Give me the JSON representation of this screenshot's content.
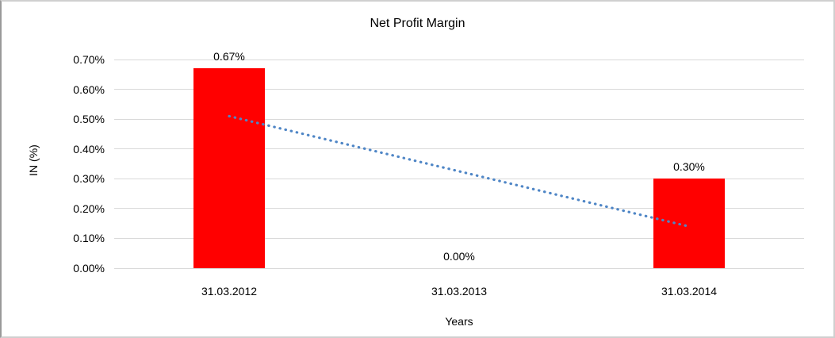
{
  "frame": {
    "background": "#ffffff",
    "border_color": "#cfcfcf"
  },
  "chart_data": {
    "type": "bar",
    "title": "Net Profit Margin",
    "xlabel": "Years",
    "ylabel": "IN (%)",
    "categories": [
      "31.03.2012",
      "31.03.2013",
      "31.03.2014"
    ],
    "values": [
      0.67,
      0.0,
      0.3
    ],
    "data_labels": [
      "0.67%",
      "0.00%",
      "0.30%"
    ],
    "y_ticks": [
      {
        "value": 0.0,
        "label": "0.00%"
      },
      {
        "value": 0.1,
        "label": "0.10%"
      },
      {
        "value": 0.2,
        "label": "0.20%"
      },
      {
        "value": 0.3,
        "label": "0.30%"
      },
      {
        "value": 0.4,
        "label": "0.40%"
      },
      {
        "value": 0.5,
        "label": "0.50%"
      },
      {
        "value": 0.6,
        "label": "0.60%"
      },
      {
        "value": 0.7,
        "label": "0.70%"
      }
    ],
    "ylim": [
      0,
      0.7
    ],
    "grid": "horizontal",
    "legend": "none",
    "bar_color": "#ff0000",
    "gridline_color": "#d9d9d9",
    "trendline": {
      "type": "linear",
      "style": "dotted",
      "color": "#4f86c6",
      "start_category": "31.03.2012",
      "start_value": 0.51,
      "end_category": "31.03.2014",
      "end_value": 0.14
    }
  }
}
